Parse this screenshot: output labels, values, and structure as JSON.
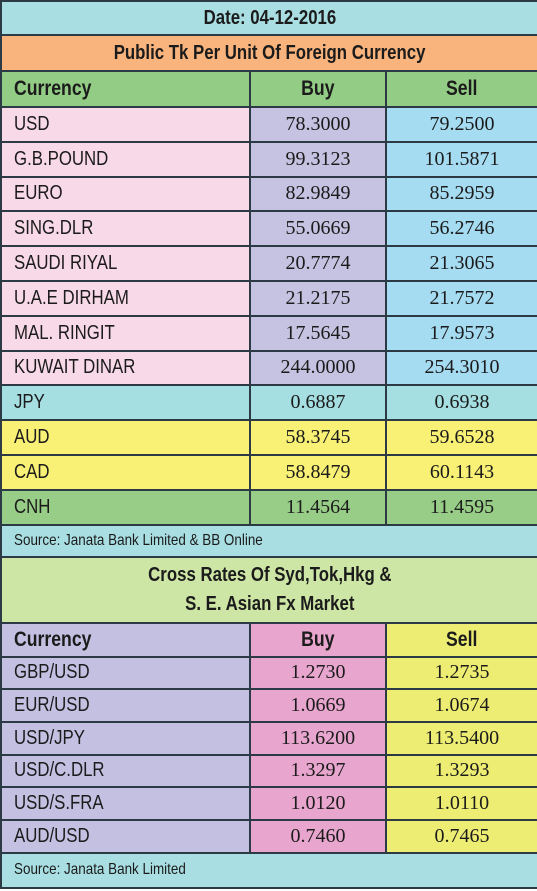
{
  "colors": {
    "header_cyan": "#a9dfe3",
    "header_orange": "#f9b37c",
    "colhead_green": "#93cc84",
    "pink": "#f8d9e7",
    "lavender": "#c6c2e1",
    "skyblue": "#a6dcf2",
    "cyan": "#a5dfe2",
    "yellow": "#f8f176",
    "green": "#97cd86",
    "lightgreen": "#cde5a5",
    "purple": "#c4c0e2",
    "magenta": "#e8a6ce",
    "paleyellow": "#eded73"
  },
  "header": {
    "date": "Date: 04-12-2016",
    "title": "Public Tk Per Unit Of Foreign Currency"
  },
  "table1": {
    "columns": [
      "Currency",
      "Buy",
      "Sell"
    ],
    "rows": [
      {
        "currency": "USD",
        "buy": "78.3000",
        "sell": "79.2500"
      },
      {
        "currency": "G.B.POUND",
        "buy": "99.3123",
        "sell": "101.5871"
      },
      {
        "currency": "EURO",
        "buy": "82.9849",
        "sell": "85.2959"
      },
      {
        "currency": "SING.DLR",
        "buy": "55.0669",
        "sell": "56.2746"
      },
      {
        "currency": "SAUDI RIYAL",
        "buy": "20.7774",
        "sell": "21.3065"
      },
      {
        "currency": "U.A.E DIRHAM",
        "buy": "21.2175",
        "sell": "21.7572"
      },
      {
        "currency": "MAL. RINGIT",
        "buy": "17.5645",
        "sell": "17.9573"
      },
      {
        "currency": "KUWAIT DINAR",
        "buy": "244.0000",
        "sell": "254.3010"
      },
      {
        "currency": "JPY",
        "buy": "0.6887",
        "sell": "0.6938"
      },
      {
        "currency": "AUD",
        "buy": "58.3745",
        "sell": "59.6528"
      },
      {
        "currency": "CAD",
        "buy": "58.8479",
        "sell": "60.1143"
      },
      {
        "currency": "CNH",
        "buy": "11.4564",
        "sell": "11.4595"
      }
    ],
    "source": "Source: Janata Bank Limited & BB Online"
  },
  "cross": {
    "title_line1": "Cross Rates Of Syd,Tok,Hkg &",
    "title_line2": "S. E. Asian Fx Market",
    "columns": [
      "Currency",
      "Buy",
      "Sell"
    ],
    "rows": [
      {
        "currency": "GBP/USD",
        "buy": "1.2730",
        "sell": "1.2735"
      },
      {
        "currency": "EUR/USD",
        "buy": "1.0669",
        "sell": "1.0674"
      },
      {
        "currency": "USD/JPY",
        "buy": "113.6200",
        "sell": "113.5400"
      },
      {
        "currency": "USD/C.DLR",
        "buy": "1.3297",
        "sell": "1.3293"
      },
      {
        "currency": "USD/S.FRA",
        "buy": "1.0120",
        "sell": "1.0110"
      },
      {
        "currency": "AUD/USD",
        "buy": "0.7460",
        "sell": "0.7465"
      }
    ],
    "source": "Source: Janata Bank Limited"
  }
}
